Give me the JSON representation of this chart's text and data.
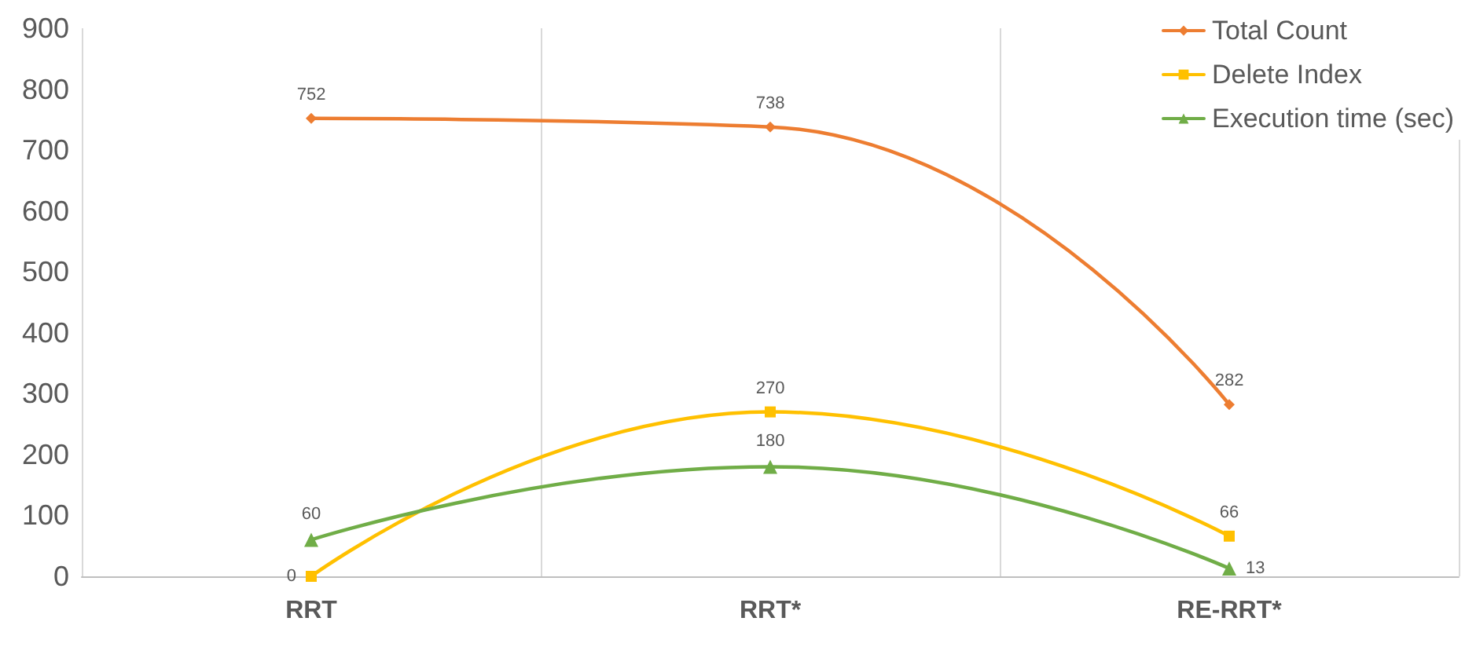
{
  "chart_data": {
    "type": "line",
    "categories": [
      "RRT",
      "RRT*",
      "RE-RRT*"
    ],
    "series": [
      {
        "name": "Total Count",
        "color": "#ed7d31",
        "marker": "diamond",
        "values": [
          752,
          738,
          282
        ]
      },
      {
        "name": "Delete Index",
        "color": "#ffc000",
        "marker": "square",
        "values": [
          0,
          270,
          66
        ]
      },
      {
        "name": "Execution time (sec)",
        "color": "#70ad47",
        "marker": "triangle",
        "values": [
          60,
          180,
          13
        ]
      }
    ],
    "ylim": [
      0,
      900
    ],
    "yticks": [
      0,
      100,
      200,
      300,
      400,
      500,
      600,
      700,
      800,
      900
    ],
    "grid": "x",
    "legend": "top right",
    "data_labels": true,
    "line_style": "solid"
  }
}
